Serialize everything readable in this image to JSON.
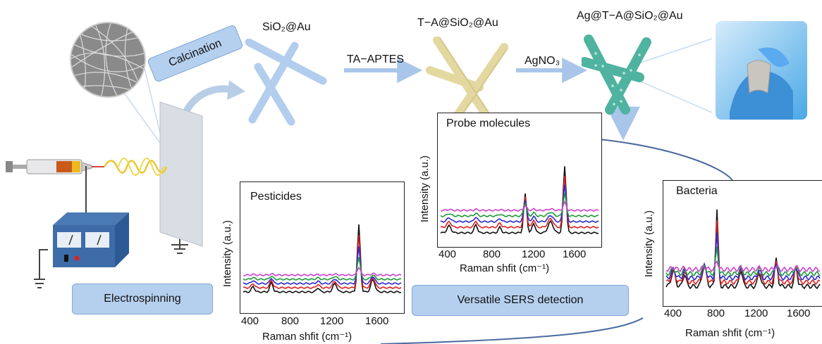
{
  "labels": {
    "sio2_au": "SiO₂@Au",
    "ta_aptes": "TA−APTES",
    "ta_sio2_au": "T−A@SiO₂@Au",
    "agno3": "AgNO₃",
    "ag_ta_sio2_au": "Ag@T−A@SiO₂@Au",
    "calcination": "Calcination",
    "electrospinning": "Electrospinning",
    "versatile": "Versatile SERS detection"
  },
  "panels": {
    "pesticides": {
      "title": "Pesticides",
      "ylabel": "Intensity (a.u.)",
      "xlabel": "Raman shfit (cm⁻¹)",
      "ticks": [
        "400",
        "800",
        "1200",
        "1600"
      ]
    },
    "probe": {
      "title": "Probe molecules",
      "ylabel": "Intensity (a.u.)",
      "xlabel": "Raman shfit (cm⁻¹)",
      "ticks": [
        "400",
        "800",
        "1200",
        "1600"
      ]
    },
    "bacteria": {
      "title": "Bacteria",
      "ylabel": "Intensity (a.u.)",
      "xlabel": "Raman shfit (cm⁻¹)",
      "ticks": [
        "400",
        "800",
        "1200",
        "1600"
      ]
    }
  },
  "colors": {
    "spectra": [
      "#111111",
      "#e02020",
      "#2a2ad0",
      "#1f9a3a",
      "#d040d0"
    ],
    "pill": "#b5d0ee",
    "arrow": "#a9c6ea",
    "fiber_sio2": "#aac8ec",
    "fiber_ta": "#e3d9a0",
    "fiber_ag": "#4fb3a0"
  }
}
